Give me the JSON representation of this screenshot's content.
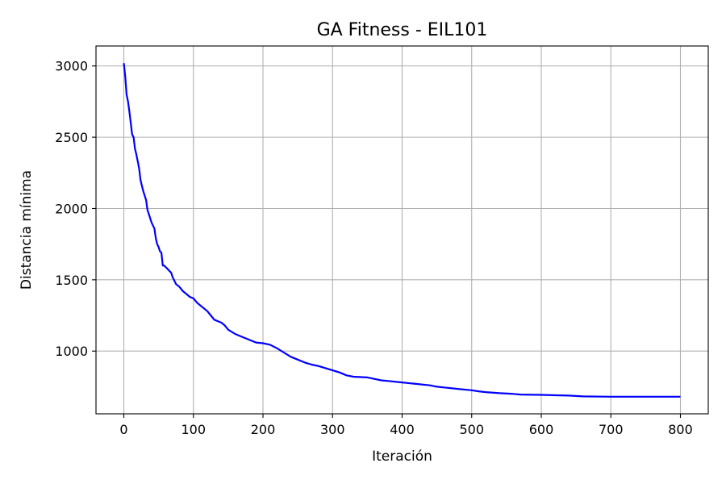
{
  "chart_data": {
    "type": "line",
    "title": "GA Fitness - EIL101",
    "xlabel": "Iteración",
    "ylabel": "Distancia mínima",
    "xlim": [
      -40,
      840
    ],
    "ylim": [
      560,
      3140
    ],
    "xticks": [
      0,
      100,
      200,
      300,
      400,
      500,
      600,
      700,
      800
    ],
    "yticks": [
      1000,
      1500,
      2000,
      2500,
      3000
    ],
    "grid": true,
    "line_color": "#0000ff",
    "series": [
      {
        "x": [
          0,
          2,
          4,
          6,
          8,
          10,
          12,
          14,
          16,
          18,
          20,
          22,
          24,
          26,
          28,
          30,
          32,
          34,
          36,
          38,
          40,
          42,
          44,
          46,
          48,
          50,
          52,
          54,
          56,
          58,
          60,
          62,
          64,
          66,
          68,
          70,
          75,
          80,
          85,
          90,
          95,
          100,
          105,
          110,
          115,
          120,
          125,
          130,
          135,
          140,
          145,
          150,
          160,
          170,
          180,
          190,
          200,
          210,
          220,
          230,
          240,
          250,
          260,
          270,
          280,
          290,
          300,
          310,
          320,
          330,
          350,
          360,
          370,
          380,
          400,
          420,
          440,
          450,
          460,
          480,
          500,
          510,
          520,
          540,
          560,
          570,
          600,
          620,
          640,
          650,
          660,
          700,
          750,
          800
        ],
        "y": [
          3020,
          2930,
          2800,
          2750,
          2680,
          2600,
          2520,
          2500,
          2420,
          2380,
          2330,
          2280,
          2200,
          2160,
          2120,
          2090,
          2060,
          1990,
          1960,
          1930,
          1900,
          1880,
          1860,
          1790,
          1750,
          1730,
          1700,
          1690,
          1600,
          1600,
          1590,
          1580,
          1570,
          1560,
          1550,
          1520,
          1470,
          1450,
          1420,
          1400,
          1380,
          1370,
          1340,
          1320,
          1300,
          1280,
          1250,
          1220,
          1210,
          1200,
          1180,
          1150,
          1120,
          1100,
          1080,
          1060,
          1055,
          1045,
          1020,
          990,
          960,
          940,
          920,
          905,
          895,
          880,
          865,
          850,
          830,
          820,
          815,
          805,
          795,
          790,
          780,
          770,
          760,
          750,
          745,
          735,
          725,
          718,
          712,
          705,
          700,
          695,
          693,
          690,
          688,
          685,
          682,
          680,
          680,
          680
        ]
      }
    ]
  }
}
